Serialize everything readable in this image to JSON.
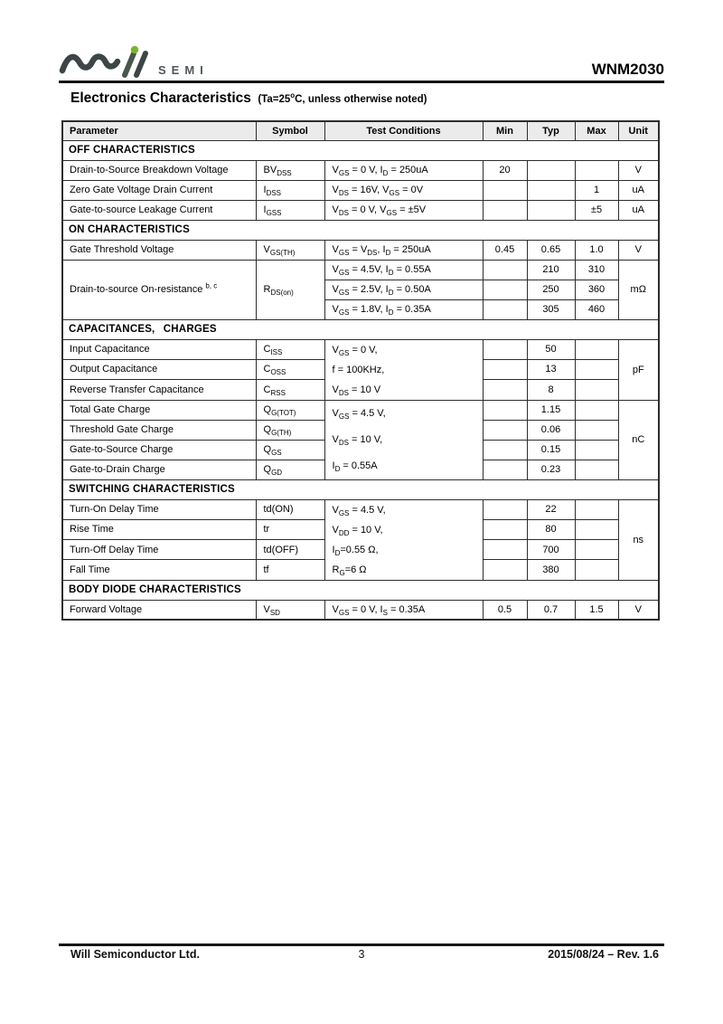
{
  "header": {
    "brand_semi": "SEMI",
    "part_number": "WNM2030"
  },
  "title": {
    "main": "Electronics Characteristics",
    "note": "(Ta=25^o^C, unless otherwise noted)"
  },
  "table": {
    "columns": [
      "Parameter",
      "Symbol",
      "Test Conditions",
      "Min",
      "Typ",
      "Max",
      "Unit"
    ],
    "off": {
      "title": "OFF CHARACTERISTICS",
      "rows": [
        {
          "param": "Drain-to-Source Breakdown Voltage",
          "symbol": "BV~DSS~",
          "cond": "V~GS~ = 0 V, I~D~ = 250uA",
          "min": "20",
          "typ": "",
          "max": "",
          "unit": "V"
        },
        {
          "param": "Zero Gate Voltage Drain Current",
          "symbol": "I~DSS~",
          "cond": "V~DS~ = 16V, V~GS~ = 0V",
          "min": "",
          "typ": "",
          "max": "1",
          "unit": "uA"
        },
        {
          "param": "Gate-to-source Leakage Current",
          "symbol": "I~GSS~",
          "cond": "V~DS~ = 0 V, V~GS~ = ±5V",
          "min": "",
          "typ": "",
          "max": "±5",
          "unit": "uA"
        }
      ]
    },
    "on": {
      "title": "ON CHARACTERISTICS",
      "vth": {
        "param": "Gate Threshold Voltage",
        "symbol": "V~GS(TH)~",
        "cond": "V~GS~ = V~DS~, I~D~ = 250uA",
        "min": "0.45",
        "typ": "0.65",
        "max": "1.0",
        "unit": "V"
      },
      "rds": {
        "param": "Drain-to-source On-resistance ^b, c^",
        "symbol": "R~DS(on)~",
        "unit": "mΩ",
        "rows": [
          {
            "cond": "V~GS~ = 4.5V, I~D~ = 0.55A",
            "min": "",
            "typ": "210",
            "max": "310"
          },
          {
            "cond": "V~GS~ = 2.5V, I~D~ = 0.50A",
            "min": "",
            "typ": "250",
            "max": "360"
          },
          {
            "cond": "V~GS~ = 1.8V, I~D~ = 0.35A",
            "min": "",
            "typ": "305",
            "max": "460"
          }
        ]
      }
    },
    "cap": {
      "title": "CAPACITANCES,  CHARGES",
      "group1": {
        "cond": "V~GS~ = 0 V,\nf = 100KHz,\nV~DS~ = 10 V",
        "unit": "pF",
        "rows": [
          {
            "param": "Input Capacitance",
            "symbol": "C~ISS~",
            "min": "",
            "typ": "50",
            "max": ""
          },
          {
            "param": "Output Capacitance",
            "symbol": "C~OSS~",
            "min": "",
            "typ": "13",
            "max": ""
          },
          {
            "param": "Reverse Transfer Capacitance",
            "symbol": "C~RSS~",
            "min": "",
            "typ": "8",
            "max": ""
          }
        ]
      },
      "group2": {
        "cond": "V~GS~ = 4.5 V,\nV~DS~ = 10 V,\nI~D~ = 0.55A",
        "unit": "nC",
        "rows": [
          {
            "param": "Total Gate Charge",
            "symbol": "Q~G(TOT)~",
            "min": "",
            "typ": "1.15",
            "max": ""
          },
          {
            "param": "Threshold Gate Charge",
            "symbol": "Q~G(TH)~",
            "min": "",
            "typ": "0.06",
            "max": ""
          },
          {
            "param": "Gate-to-Source Charge",
            "symbol": "Q~GS~",
            "min": "",
            "typ": "0.15",
            "max": ""
          },
          {
            "param": "Gate-to-Drain Charge",
            "symbol": "Q~GD~",
            "min": "",
            "typ": "0.23",
            "max": ""
          }
        ]
      }
    },
    "sw": {
      "title": "SWITCHING CHARACTERISTICS",
      "cond": "V~GS~ = 4.5 V,\nV~DD~ = 10 V,\nI~D~=0.55 Ω,\nR~G~=6 Ω",
      "unit": "ns",
      "rows": [
        {
          "param": "Turn-On Delay Time",
          "symbol": "td(ON)",
          "min": "",
          "typ": "22",
          "max": ""
        },
        {
          "param": "Rise Time",
          "symbol": "tr",
          "min": "",
          "typ": "80",
          "max": ""
        },
        {
          "param": "Turn-Off Delay Time",
          "symbol": "td(OFF)",
          "min": "",
          "typ": "700",
          "max": ""
        },
        {
          "param": "Fall Time",
          "symbol": "tf",
          "min": "",
          "typ": "380",
          "max": ""
        }
      ]
    },
    "body": {
      "title": "BODY DIODE CHARACTERISTICS",
      "row": {
        "param": "Forward Voltage",
        "symbol": "V~SD~",
        "cond": "V~GS~ = 0 V, I~S~ = 0.35A",
        "min": "0.5",
        "typ": "0.7",
        "max": "1.5",
        "unit": "V"
      }
    }
  },
  "footer": {
    "company": "Will Semiconductor Ltd.",
    "page": "3",
    "revision": "2015/08/24 – Rev. 1.6"
  },
  "colors": {
    "logo_green": "#76b82a",
    "logo_gray": "#3d4547",
    "table_border": "#2d2d2d",
    "header_row_bg": "#ebebeb"
  }
}
